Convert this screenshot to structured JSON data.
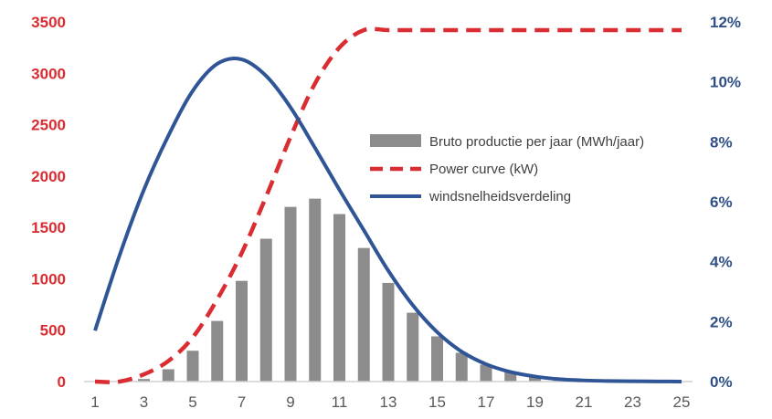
{
  "chart_data": {
    "type": "bar+line",
    "x": [
      1,
      2,
      3,
      4,
      5,
      6,
      7,
      8,
      9,
      10,
      11,
      12,
      13,
      14,
      15,
      16,
      17,
      18,
      19,
      20,
      21,
      22,
      23,
      24,
      25
    ],
    "x_ticks": [
      1,
      3,
      5,
      7,
      9,
      11,
      13,
      15,
      17,
      19,
      21,
      23,
      25
    ],
    "ylim_left": [
      0,
      3500
    ],
    "y_ticks_left": [
      0,
      500,
      1000,
      1500,
      2000,
      2500,
      3000,
      3500
    ],
    "ylim_right": [
      0,
      12
    ],
    "y_ticks_right": [
      0,
      2,
      4,
      6,
      8,
      10,
      12
    ],
    "y_right_unit": "%",
    "series": [
      {
        "name": "Bruto productie per jaar (MWh/jaar)",
        "type": "bar",
        "axis": "left",
        "color": "#8c8c8c",
        "values": [
          0,
          0,
          25,
          120,
          300,
          590,
          980,
          1390,
          1700,
          1780,
          1630,
          1300,
          960,
          670,
          440,
          280,
          165,
          95,
          50,
          25,
          12,
          5,
          2,
          1,
          0
        ]
      },
      {
        "name": "Power curve (kW)",
        "type": "line",
        "style": "dashed",
        "axis": "left",
        "color": "#d92d32",
        "values": [
          0,
          0,
          70,
          200,
          430,
          800,
          1250,
          1800,
          2380,
          2900,
          3250,
          3420,
          3420,
          3420,
          3420,
          3420,
          3420,
          3420,
          3420,
          3420,
          3420,
          3420,
          3420,
          3420,
          3420
        ]
      },
      {
        "name": "windsnelheidsverdeling",
        "type": "line",
        "style": "solid",
        "axis": "right",
        "color": "#2f5597",
        "values": [
          1.7,
          4.2,
          6.4,
          8.2,
          9.7,
          10.6,
          10.75,
          10.2,
          9.15,
          7.8,
          6.4,
          5.05,
          3.7,
          2.55,
          1.65,
          1.0,
          0.58,
          0.32,
          0.17,
          0.08,
          0.04,
          0.02,
          0.01,
          0.005,
          0.0
        ]
      }
    ],
    "legend_position": "center-right",
    "grid": false
  }
}
